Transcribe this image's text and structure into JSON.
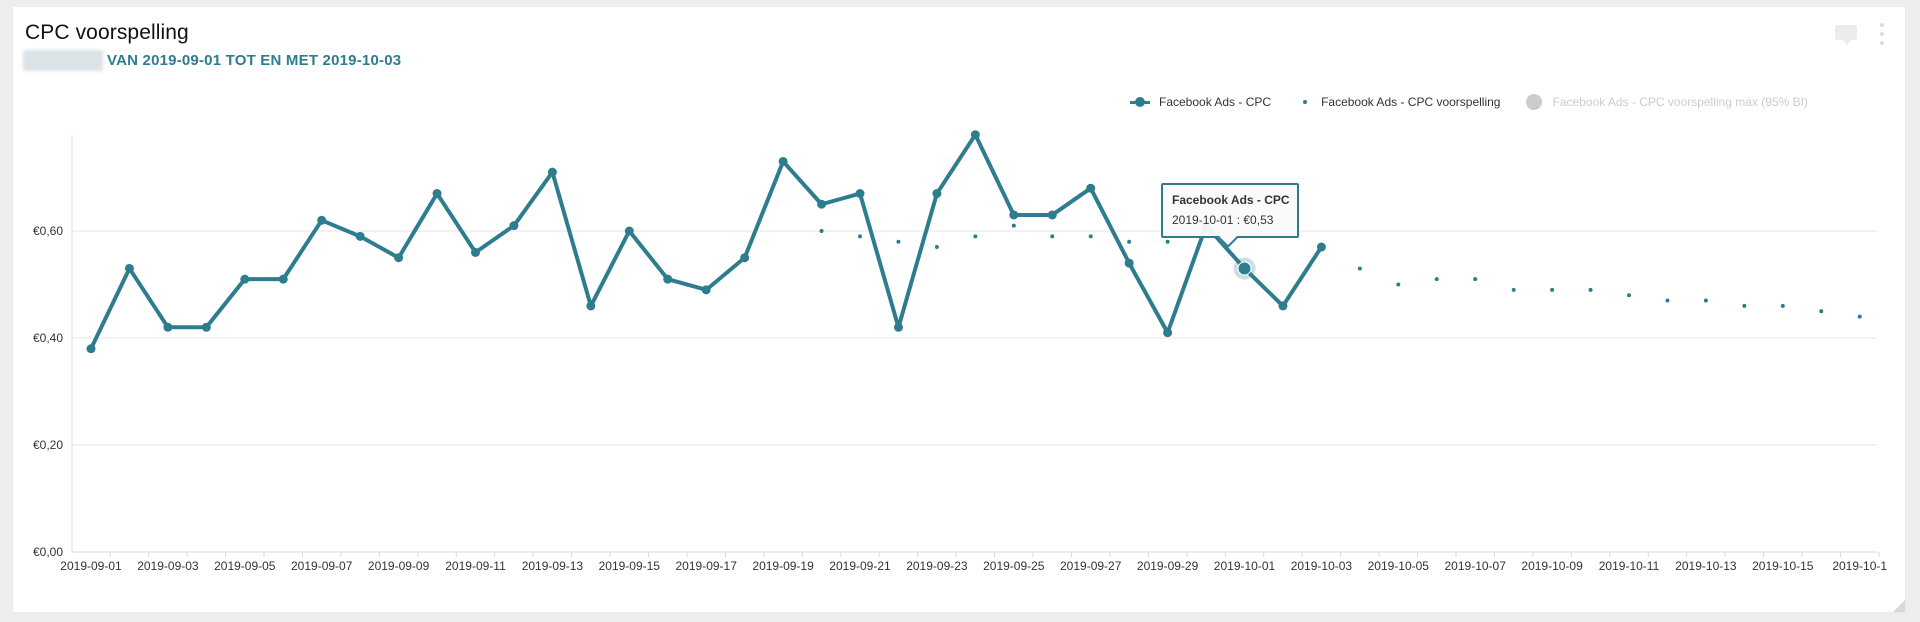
{
  "header": {
    "title": "CPC voorspelling",
    "subtitle": "VAN 2019-09-01 TOT EN MET 2019-10-03"
  },
  "icons": {
    "comment": "comment-icon",
    "menu": "more-vertical-icon"
  },
  "legend": [
    {
      "label": "Facebook Ads - CPC",
      "symbol": "line-marker",
      "enabled": true
    },
    {
      "label": "Facebook Ads - CPC voorspelling",
      "symbol": "dot",
      "enabled": true
    },
    {
      "label": "Facebook Ads - CPC voorspelling max (95% BI)",
      "symbol": "circle",
      "enabled": false
    }
  ],
  "tooltip": {
    "title": "Facebook Ads - CPC",
    "text": "2019-10-01 : €0,53"
  },
  "colors": {
    "series": "#2e7d8e",
    "grid": "#e6e6e6",
    "disabled": "#cccccc"
  },
  "chart_data": {
    "type": "line",
    "title": "CPC voorspelling",
    "subtitle": "VAN 2019-09-01 TOT EN MET 2019-10-03",
    "xlabel": "",
    "ylabel": "",
    "ylim": [
      0,
      0.78
    ],
    "yticks": [
      0,
      0.2,
      0.4,
      0.6
    ],
    "ytick_labels": [
      "€0,00",
      "€0,20",
      "€0,40",
      "€0,60"
    ],
    "grid": true,
    "legend_position": "top-right",
    "x": [
      "2019-09-01",
      "2019-09-02",
      "2019-09-03",
      "2019-09-04",
      "2019-09-05",
      "2019-09-06",
      "2019-09-07",
      "2019-09-08",
      "2019-09-09",
      "2019-09-10",
      "2019-09-11",
      "2019-09-12",
      "2019-09-13",
      "2019-09-14",
      "2019-09-15",
      "2019-09-16",
      "2019-09-17",
      "2019-09-18",
      "2019-09-19",
      "2019-09-20",
      "2019-09-21",
      "2019-09-22",
      "2019-09-23",
      "2019-09-24",
      "2019-09-25",
      "2019-09-26",
      "2019-09-27",
      "2019-09-28",
      "2019-09-29",
      "2019-09-30",
      "2019-10-01",
      "2019-10-02",
      "2019-10-03",
      "2019-10-04",
      "2019-10-05",
      "2019-10-06",
      "2019-10-07",
      "2019-10-08",
      "2019-10-09",
      "2019-10-10",
      "2019-10-11",
      "2019-10-12",
      "2019-10-13",
      "2019-10-14",
      "2019-10-15",
      "2019-10-16",
      "2019-10-17"
    ],
    "xtick_labels": [
      "2019-09-01",
      "2019-09-03",
      "2019-09-05",
      "2019-09-07",
      "2019-09-09",
      "2019-09-11",
      "2019-09-13",
      "2019-09-15",
      "2019-09-17",
      "2019-09-19",
      "2019-09-21",
      "2019-09-23",
      "2019-09-25",
      "2019-09-27",
      "2019-09-29",
      "2019-10-01",
      "2019-10-03",
      "2019-10-05",
      "2019-10-07",
      "2019-10-09",
      "2019-10-11",
      "2019-10-13",
      "2019-10-15",
      "2019-10-1"
    ],
    "series": [
      {
        "name": "Facebook Ads - CPC",
        "style": "line-marker",
        "values": [
          0.38,
          0.53,
          0.42,
          0.42,
          0.51,
          0.51,
          0.62,
          0.59,
          0.55,
          0.67,
          0.56,
          0.61,
          0.71,
          0.46,
          0.6,
          0.51,
          0.49,
          0.55,
          0.73,
          0.65,
          0.67,
          0.42,
          0.67,
          0.78,
          0.63,
          0.63,
          0.68,
          0.54,
          0.41,
          0.61,
          0.53,
          0.46,
          0.57,
          null,
          null,
          null,
          null,
          null,
          null,
          null,
          null,
          null,
          null,
          null,
          null,
          null,
          null
        ]
      },
      {
        "name": "Facebook Ads - CPC voorspelling",
        "style": "dot",
        "values": [
          null,
          null,
          null,
          null,
          null,
          null,
          null,
          null,
          null,
          null,
          null,
          null,
          null,
          null,
          null,
          null,
          null,
          null,
          null,
          0.6,
          0.59,
          0.58,
          0.57,
          0.59,
          0.61,
          0.59,
          0.59,
          0.58,
          0.58,
          null,
          null,
          null,
          null,
          0.53,
          0.5,
          0.51,
          0.51,
          0.49,
          0.49,
          0.49,
          0.48,
          0.47,
          0.47,
          0.46,
          0.46,
          0.45,
          0.44
        ]
      },
      {
        "name": "Facebook Ads - CPC voorspelling max (95% BI)",
        "style": "hidden",
        "values": []
      }
    ],
    "highlight": {
      "series": "Facebook Ads - CPC",
      "x": "2019-10-01",
      "value": 0.53
    }
  }
}
